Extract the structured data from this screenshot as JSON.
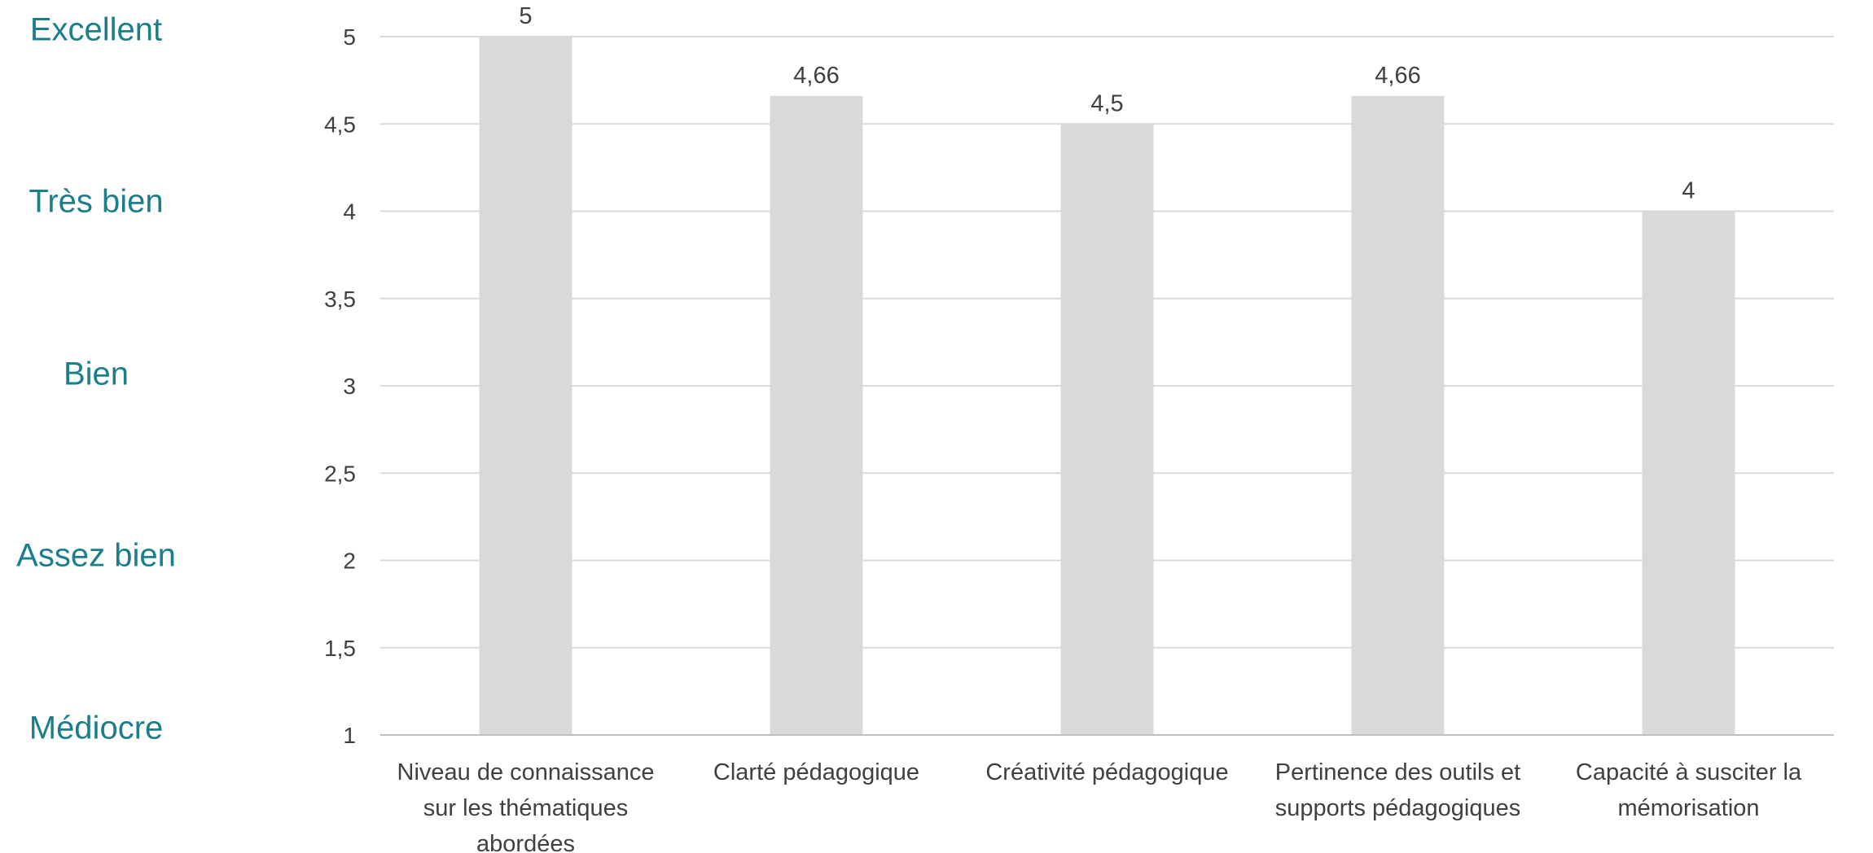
{
  "rating_scale": {
    "labels": [
      "Excellent",
      "Très bien",
      "Bien",
      "Assez bien",
      "Médiocre"
    ],
    "values": [
      5,
      4,
      3,
      2,
      1
    ],
    "color": "#1a7f8a"
  },
  "chart_data": {
    "type": "bar",
    "title": "",
    "xlabel": "",
    "ylabel": "",
    "ylim": [
      1,
      5
    ],
    "yticks": [
      1,
      1.5,
      2,
      2.5,
      3,
      3.5,
      4,
      4.5,
      5
    ],
    "ytick_labels": [
      "1",
      "1,5",
      "2",
      "2,5",
      "3",
      "3,5",
      "4",
      "4,5",
      "5"
    ],
    "categories": [
      [
        "Niveau de connaissance",
        "sur les thématiques",
        "abordées"
      ],
      [
        "Clarté pédagogique"
      ],
      [
        "Créativité pédagogique"
      ],
      [
        "Pertinence des outils et",
        "supports pédagogiques"
      ],
      [
        "Capacité à susciter la",
        "mémorisation"
      ]
    ],
    "values": [
      5,
      4.66,
      4.5,
      4.66,
      4
    ],
    "data_labels": [
      "5",
      "4,66",
      "4,5",
      "4,66",
      "4"
    ],
    "grid": true,
    "bar_color": "#d9d9d9",
    "grid_color": "#d9d9d9",
    "text_color": "#404040"
  }
}
